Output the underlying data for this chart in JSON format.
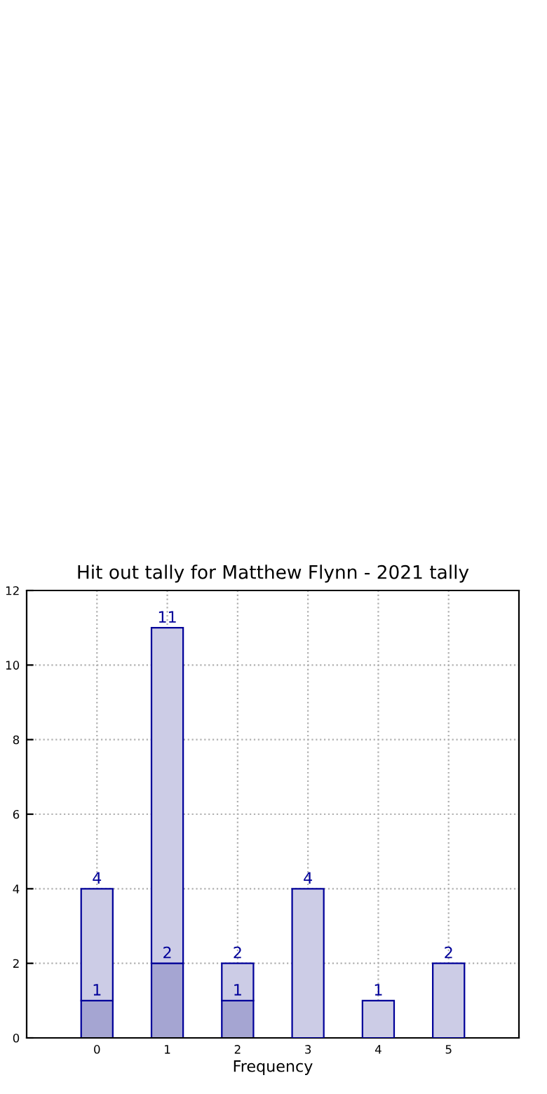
{
  "chart_data": {
    "type": "bar",
    "title": "Hit out tally for Matthew Flynn - 2021 tally",
    "xlabel": "Frequency",
    "x": [
      0,
      1,
      2,
      3,
      4,
      5
    ],
    "stacked": true,
    "series": [
      {
        "color": "#a5a5d2",
        "values": [
          1,
          2,
          1,
          null,
          null,
          null
        ],
        "value_labels": [
          "1",
          "2",
          "1",
          null,
          null,
          null
        ]
      },
      {
        "color": "#cccce6",
        "values": [
          3,
          9,
          1,
          4,
          1,
          2
        ]
      }
    ],
    "totals": [
      "4",
      "11",
      "2",
      "4",
      "1",
      "2"
    ],
    "xlim": [
      -1,
      6
    ],
    "xticks": [
      0,
      1,
      2,
      3,
      4,
      5
    ],
    "ylim": [
      0,
      12
    ],
    "yticks": [
      0,
      2,
      4,
      6,
      8,
      10,
      12
    ],
    "grid": true,
    "line_style": "dotted"
  }
}
